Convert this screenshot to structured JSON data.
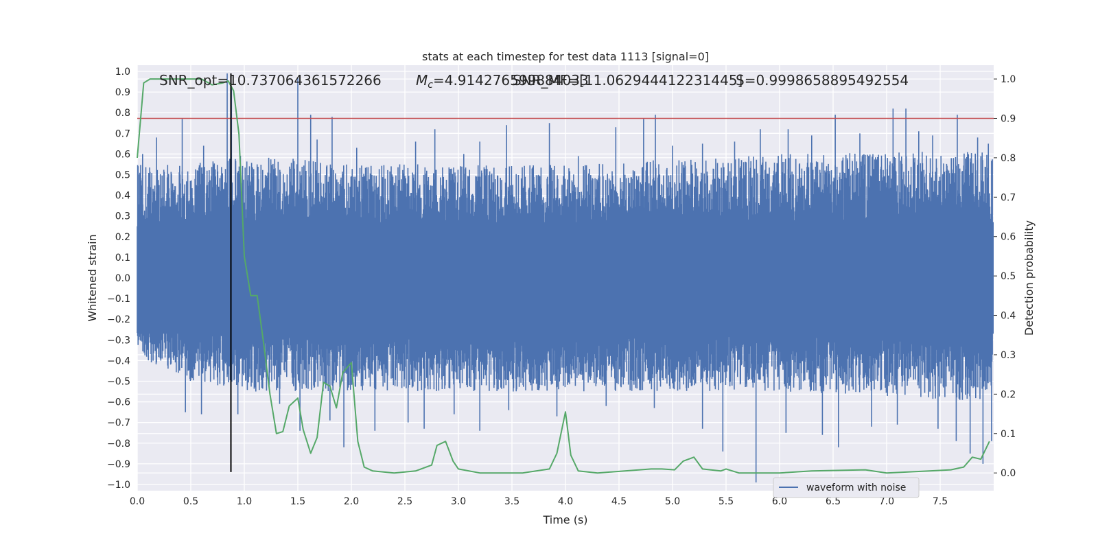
{
  "chart_data": {
    "type": "line",
    "title": "stats at each timestep for test data 1113 [signal=0]",
    "xlabel": "Time (s)",
    "ylabel_left": "Whitened strain",
    "ylabel_right": "Detection probability",
    "xlim": [
      0.0,
      8.0
    ],
    "ylim_left": [
      -1.03,
      1.03
    ],
    "ylim_right": [
      -0.045,
      1.035
    ],
    "x_ticks": [
      "0.0",
      "0.5",
      "1.0",
      "1.5",
      "2.0",
      "2.5",
      "3.0",
      "3.5",
      "4.0",
      "4.5",
      "5.0",
      "5.5",
      "6.0",
      "6.5",
      "7.0",
      "7.5"
    ],
    "y_ticks_left": [
      "1.0",
      "0.9",
      "0.8",
      "0.7",
      "0.6",
      "0.5",
      "0.4",
      "0.3",
      "0.2",
      "0.1",
      "0.0",
      "−0.1",
      "−0.2",
      "−0.3",
      "−0.4",
      "−0.5",
      "−0.6",
      "−0.7",
      "−0.8",
      "−0.9",
      "−1.0"
    ],
    "y_ticks_right": [
      "1.0",
      "0.9",
      "0.8",
      "0.7",
      "0.6",
      "0.5",
      "0.4",
      "0.3",
      "0.2",
      "0.1",
      "0.0"
    ],
    "grid": true,
    "legend": {
      "position": "bottom-right",
      "entries": [
        "waveform with noise"
      ]
    },
    "annotations": {
      "snr_opt": "SNR_opt=10.737064361572266",
      "mc_prefix": "M",
      "mc_sub": "c",
      "mc_value": "=4.914276599884033",
      "snr_mf": "SNR_MF=[11.062944412231445]",
      "s_value": "S=0.9998658895492554"
    },
    "threshold_line": {
      "axis": "right",
      "y": 0.9,
      "color": "#c44e52"
    },
    "event_marker": {
      "x": 0.875,
      "y_range": [
        -0.94,
        0.99
      ],
      "color": "#000000"
    },
    "series": [
      {
        "name": "waveform with noise",
        "axis": "left",
        "color": "#4c72b0",
        "envelope_upper": [
          [
            0.0,
            0.55
          ],
          [
            0.5,
            0.55
          ],
          [
            1.0,
            0.6
          ],
          [
            2.0,
            0.55
          ],
          [
            4.0,
            0.55
          ],
          [
            6.0,
            0.6
          ],
          [
            8.0,
            0.62
          ]
        ],
        "envelope_lower": [
          [
            0.0,
            -0.38
          ],
          [
            0.5,
            -0.5
          ],
          [
            1.0,
            -0.55
          ],
          [
            2.0,
            -0.55
          ],
          [
            4.0,
            -0.55
          ],
          [
            6.0,
            -0.55
          ],
          [
            8.0,
            -0.6
          ]
        ],
        "spikes": [
          [
            0.05,
            0.6
          ],
          [
            0.18,
            0.68
          ],
          [
            0.42,
            0.77
          ],
          [
            0.62,
            0.64
          ],
          [
            0.84,
            0.99
          ],
          [
            0.88,
            0.92
          ],
          [
            1.12,
            0.55
          ],
          [
            1.5,
            0.97
          ],
          [
            1.62,
            0.79
          ],
          [
            1.68,
            0.67
          ],
          [
            1.82,
            0.78
          ],
          [
            2.05,
            0.63
          ],
          [
            2.6,
            0.66
          ],
          [
            2.78,
            0.72
          ],
          [
            3.05,
            0.6
          ],
          [
            3.2,
            0.66
          ],
          [
            3.45,
            0.74
          ],
          [
            3.85,
            0.75
          ],
          [
            4.12,
            0.59
          ],
          [
            4.47,
            0.73
          ],
          [
            4.73,
            0.77
          ],
          [
            4.84,
            0.79
          ],
          [
            5.0,
            0.64
          ],
          [
            5.28,
            0.65
          ],
          [
            5.58,
            0.66
          ],
          [
            5.82,
            0.72
          ],
          [
            6.08,
            0.72
          ],
          [
            6.3,
            0.69
          ],
          [
            6.52,
            0.79
          ],
          [
            6.75,
            0.7
          ],
          [
            7.06,
            0.82
          ],
          [
            7.18,
            0.82
          ],
          [
            7.3,
            0.71
          ],
          [
            7.43,
            0.69
          ],
          [
            7.66,
            0.79
          ],
          [
            7.85,
            0.68
          ],
          [
            7.95,
            0.65
          ],
          [
            0.45,
            -0.65
          ],
          [
            0.6,
            -0.66
          ],
          [
            0.94,
            -0.66
          ],
          [
            1.33,
            -0.61
          ],
          [
            1.52,
            -0.74
          ],
          [
            1.8,
            -0.69
          ],
          [
            1.93,
            -0.82
          ],
          [
            2.22,
            -0.74
          ],
          [
            2.53,
            -0.7
          ],
          [
            2.68,
            -0.73
          ],
          [
            2.96,
            -0.66
          ],
          [
            3.2,
            -0.74
          ],
          [
            3.47,
            -0.64
          ],
          [
            3.92,
            -0.67
          ],
          [
            4.38,
            -0.62
          ],
          [
            4.83,
            -0.63
          ],
          [
            5.28,
            -0.73
          ],
          [
            5.47,
            -0.84
          ],
          [
            5.78,
            -0.99
          ],
          [
            6.06,
            -0.75
          ],
          [
            6.4,
            -0.76
          ],
          [
            6.55,
            -0.82
          ],
          [
            6.86,
            -0.72
          ],
          [
            7.1,
            -0.71
          ],
          [
            7.48,
            -0.73
          ],
          [
            7.65,
            -0.79
          ],
          [
            7.78,
            -0.85
          ],
          [
            7.9,
            -0.9
          ],
          [
            7.98,
            -0.79
          ]
        ]
      },
      {
        "name": "",
        "axis": "right",
        "color": "#55a868",
        "points": [
          [
            0.0,
            0.8
          ],
          [
            0.06,
            0.99
          ],
          [
            0.12,
            1.0
          ],
          [
            0.3,
            1.0
          ],
          [
            0.6,
            1.0
          ],
          [
            0.7,
            0.985
          ],
          [
            0.8,
            0.99
          ],
          [
            0.85,
            0.995
          ],
          [
            0.9,
            0.97
          ],
          [
            0.95,
            0.86
          ],
          [
            1.0,
            0.55
          ],
          [
            1.06,
            0.45
          ],
          [
            1.12,
            0.45
          ],
          [
            1.18,
            0.33
          ],
          [
            1.24,
            0.2
          ],
          [
            1.3,
            0.1
          ],
          [
            1.36,
            0.105
          ],
          [
            1.42,
            0.17
          ],
          [
            1.5,
            0.19
          ],
          [
            1.55,
            0.11
          ],
          [
            1.62,
            0.05
          ],
          [
            1.68,
            0.09
          ],
          [
            1.74,
            0.23
          ],
          [
            1.8,
            0.22
          ],
          [
            1.86,
            0.165
          ],
          [
            1.92,
            0.255
          ],
          [
            2.0,
            0.28
          ],
          [
            2.06,
            0.08
          ],
          [
            2.12,
            0.015
          ],
          [
            2.2,
            0.005
          ],
          [
            2.4,
            0.0
          ],
          [
            2.6,
            0.005
          ],
          [
            2.75,
            0.02
          ],
          [
            2.8,
            0.07
          ],
          [
            2.88,
            0.08
          ],
          [
            2.95,
            0.03
          ],
          [
            3.0,
            0.01
          ],
          [
            3.2,
            0.0
          ],
          [
            3.6,
            0.0
          ],
          [
            3.85,
            0.01
          ],
          [
            3.92,
            0.05
          ],
          [
            4.0,
            0.155
          ],
          [
            4.05,
            0.045
          ],
          [
            4.12,
            0.005
          ],
          [
            4.3,
            0.0
          ],
          [
            4.8,
            0.01
          ],
          [
            4.9,
            0.01
          ],
          [
            5.02,
            0.008
          ],
          [
            5.1,
            0.03
          ],
          [
            5.2,
            0.04
          ],
          [
            5.28,
            0.01
          ],
          [
            5.45,
            0.005
          ],
          [
            5.5,
            0.01
          ],
          [
            5.62,
            0.0
          ],
          [
            6.0,
            0.0
          ],
          [
            6.3,
            0.005
          ],
          [
            6.8,
            0.008
          ],
          [
            7.0,
            0.0
          ],
          [
            7.4,
            0.005
          ],
          [
            7.6,
            0.008
          ],
          [
            7.72,
            0.015
          ],
          [
            7.8,
            0.04
          ],
          [
            7.88,
            0.035
          ],
          [
            7.96,
            0.08
          ]
        ]
      }
    ]
  }
}
